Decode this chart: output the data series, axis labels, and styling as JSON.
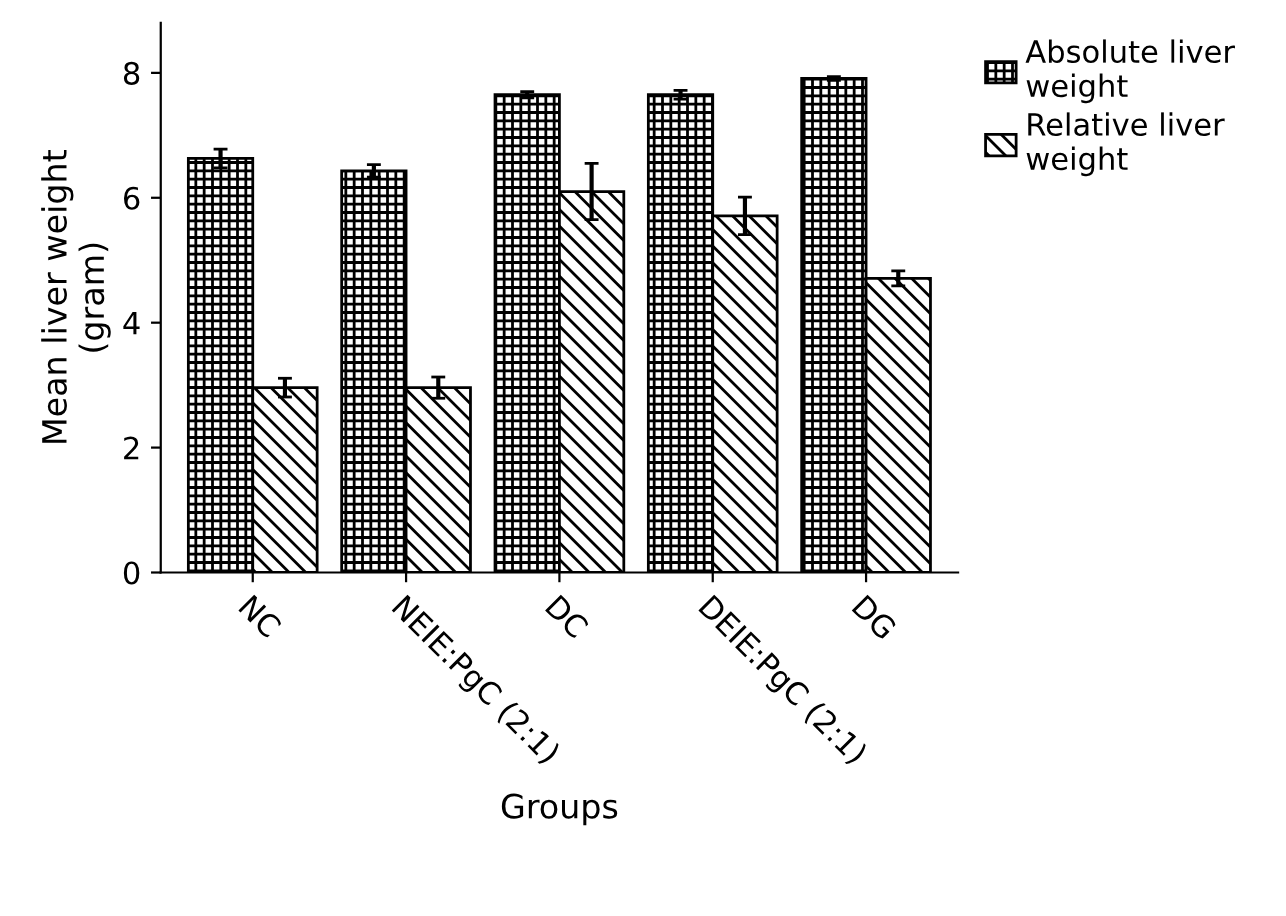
{
  "chart_data": {
    "type": "bar",
    "xlabel": "Groups",
    "ylabel": "Mean liver weight\n(gram)",
    "categories": [
      "NC",
      "NEIE:PgC (2:1)",
      "DC",
      "DEIE:PgC (2:1)",
      "DG"
    ],
    "series": [
      {
        "name": "Absolute liver\nweight",
        "color": "#000000",
        "values": [
          6.63,
          6.43,
          7.65,
          7.65,
          7.91
        ],
        "errors": [
          0.15,
          0.1,
          0.05,
          0.07,
          0.03
        ]
      },
      {
        "name": "Relative liver\nweight",
        "color": "#000000",
        "values": [
          2.96,
          2.96,
          6.1,
          5.71,
          4.71
        ],
        "errors": [
          0.15,
          0.17,
          0.45,
          0.3,
          0.12
        ]
      }
    ],
    "ylim": [
      0,
      8.8
    ],
    "yticks": [
      0,
      2,
      4,
      6,
      8
    ],
    "grid": false,
    "legend": "top right"
  }
}
